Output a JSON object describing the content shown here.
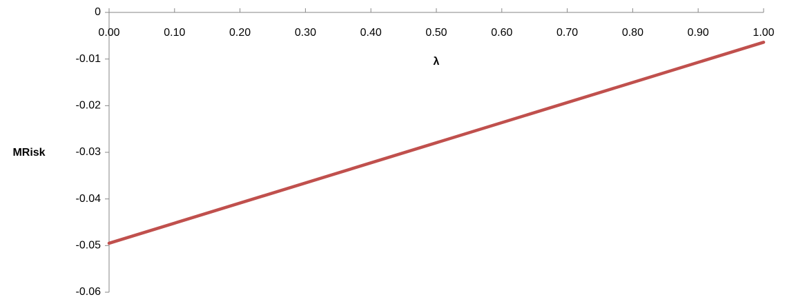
{
  "chart_data": {
    "type": "line",
    "x_label": "λ",
    "y_label": "MRisk",
    "x": [
      0,
      1
    ],
    "series": [
      {
        "name": "MRisk",
        "color": "#c0504d",
        "values": [
          -0.0495,
          -0.0064
        ]
      }
    ],
    "xlim": [
      0,
      1
    ],
    "xticks": [
      {
        "value": 0,
        "label": "0.00"
      },
      {
        "value": 0.1,
        "label": "0.10"
      },
      {
        "value": 0.2,
        "label": "0.20"
      },
      {
        "value": 0.3,
        "label": "0.30"
      },
      {
        "value": 0.4,
        "label": "0.40"
      },
      {
        "value": 0.5,
        "label": "0.50"
      },
      {
        "value": 0.6,
        "label": "0.60"
      },
      {
        "value": 0.7,
        "label": "0.70"
      },
      {
        "value": 0.8,
        "label": "0.80"
      },
      {
        "value": 0.9,
        "label": "0.90"
      },
      {
        "value": 1,
        "label": "1.00"
      }
    ],
    "ylim": [
      -0.06,
      0
    ],
    "yticks": [
      0,
      -0.01,
      -0.02,
      -0.03,
      -0.04,
      -0.05,
      -0.06
    ],
    "grid": false
  }
}
